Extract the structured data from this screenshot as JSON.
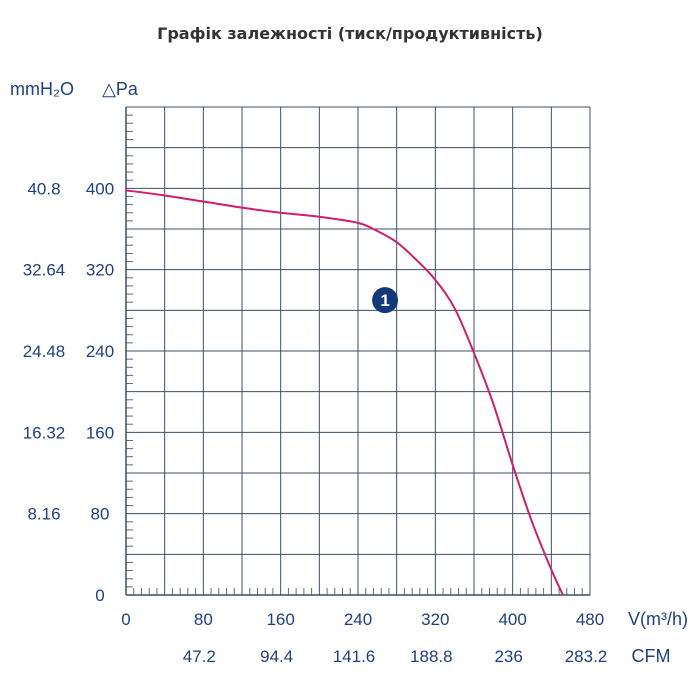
{
  "page_title": "Графік залежності (тиск/продуктивність)",
  "chart_data": {
    "type": "line",
    "x_unit": "V(m³/h)",
    "x2_unit": "CFM",
    "y_unit_left": "mmH₂O",
    "y_unit_right": "△Pa",
    "xlim": [
      0,
      480
    ],
    "ylim": [
      0,
      480
    ],
    "x_ticks": [
      0,
      80,
      160,
      240,
      320,
      400,
      480
    ],
    "x2_ticks": [
      {
        "at": 80,
        "label": "47.2"
      },
      {
        "at": 160,
        "label": "94.4"
      },
      {
        "at": 240,
        "label": "141.6"
      },
      {
        "at": 320,
        "label": "188.8"
      },
      {
        "at": 400,
        "label": "236"
      },
      {
        "at": 480,
        "label": "283.2"
      }
    ],
    "y_ticks_pa": [
      0,
      80,
      160,
      240,
      320,
      400
    ],
    "y_ticks_mmh2o": [
      {
        "at": 80,
        "label": "8.16"
      },
      {
        "at": 160,
        "label": "16.32"
      },
      {
        "at": 240,
        "label": "24.48"
      },
      {
        "at": 320,
        "label": "32.64"
      },
      {
        "at": 400,
        "label": "40.8"
      }
    ],
    "grid": true,
    "curve_color": "#cc1f6e",
    "axis_color": "#1f3f86",
    "series": [
      {
        "marker_label": "1",
        "marker_at": [
          268,
          290
        ],
        "points": [
          [
            0,
            398
          ],
          [
            40,
            393
          ],
          [
            80,
            387
          ],
          [
            120,
            381
          ],
          [
            160,
            376
          ],
          [
            200,
            372
          ],
          [
            240,
            366
          ],
          [
            260,
            358
          ],
          [
            280,
            347
          ],
          [
            300,
            330
          ],
          [
            320,
            310
          ],
          [
            340,
            282
          ],
          [
            360,
            238
          ],
          [
            380,
            188
          ],
          [
            400,
            128
          ],
          [
            420,
            72
          ],
          [
            440,
            25
          ],
          [
            452,
            0
          ]
        ]
      }
    ]
  }
}
